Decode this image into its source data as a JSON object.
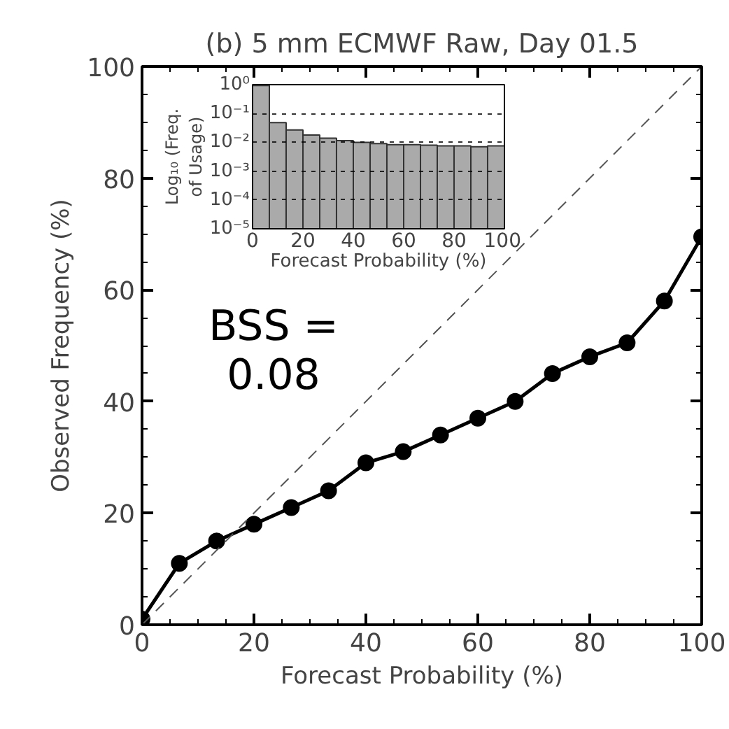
{
  "chart_data": [
    {
      "type": "line",
      "title": "(b) 5 mm ECMWF Raw, Day 01.5",
      "xlabel": "Forecast Probability (%)",
      "ylabel": "Observed Frequency (%)",
      "x": [
        0,
        6.67,
        13.33,
        20,
        26.67,
        33.33,
        40,
        46.67,
        53.33,
        60,
        66.67,
        73.33,
        80,
        86.67,
        93.33,
        100
      ],
      "series": [
        {
          "color": "#000000",
          "values": [
            1,
            11,
            15,
            18,
            21,
            24,
            29,
            31,
            34,
            37,
            40,
            45,
            48,
            50.5,
            58,
            69.5
          ],
          "marker": "circle",
          "line_style": "solid"
        },
        {
          "color": "#555555",
          "x": [
            0,
            100
          ],
          "values": [
            0,
            100
          ],
          "marker": "none",
          "line_style": "dashed"
        }
      ],
      "xlim": [
        0,
        100
      ],
      "ylim": [
        0,
        100
      ],
      "xticks": [
        0,
        20,
        40,
        60,
        80,
        100
      ],
      "yticks": [
        0,
        20,
        40,
        60,
        80,
        100
      ],
      "grid": false,
      "annotations": [
        "BSS =\n0.08"
      ]
    },
    {
      "type": "histogram",
      "xlabel": "Forecast Probability (%)",
      "ylabel": "Log₁₀ (Freq. of Usage)",
      "color": "#aaaaaa",
      "bins": [
        0,
        6.67,
        13.33,
        20,
        26.67,
        33.33,
        40,
        46.67,
        53.33,
        60,
        66.67,
        73.33,
        80,
        86.67,
        93.33,
        100
      ],
      "values": [
        0.93,
        0.048,
        0.027,
        0.018,
        0.014,
        0.0115,
        0.01,
        0.009,
        0.0083,
        0.0083,
        0.008,
        0.0075,
        0.0075,
        0.007,
        0.0075
      ],
      "log": "y",
      "xlim": [
        0,
        100
      ],
      "ylim": [
        1e-05,
        1
      ],
      "xticks": [
        0,
        20,
        40,
        60,
        80,
        100
      ],
      "yticks": [
        {
          "value": 1e-05,
          "label": "10⁻⁵"
        },
        {
          "value": 0.0001,
          "label": "10⁻⁴"
        },
        {
          "value": 0.001,
          "label": "10⁻³"
        },
        {
          "value": 0.01,
          "label": "10⁻²"
        },
        {
          "value": 0.1,
          "label": "10⁻¹"
        },
        {
          "value": 1,
          "label": "10⁰"
        }
      ],
      "grid": "y"
    }
  ]
}
